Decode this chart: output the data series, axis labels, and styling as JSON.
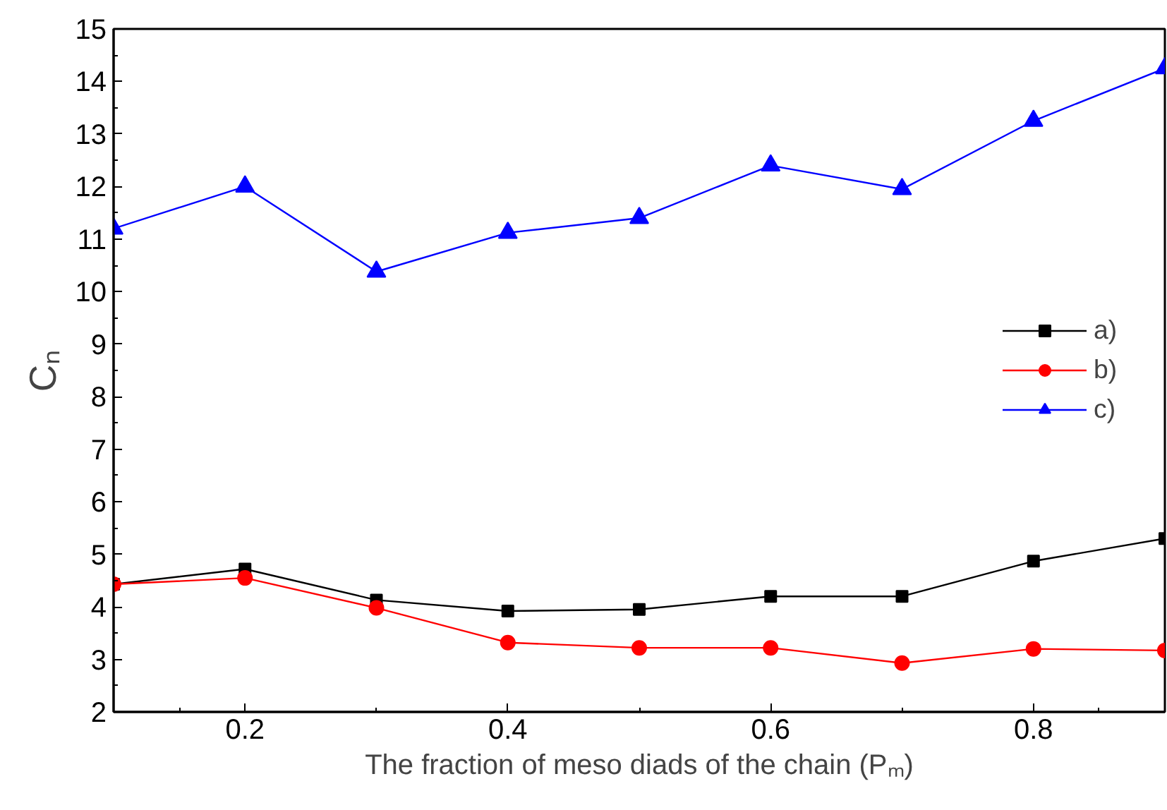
{
  "chart_data": {
    "type": "line",
    "xlabel": "The fraction of meso diads of the chain (Pₘ)",
    "ylabel": "Cₙ",
    "x": [
      0.1,
      0.2,
      0.3,
      0.4,
      0.5,
      0.6,
      0.7,
      0.8,
      0.9
    ],
    "series": [
      {
        "name": "a)",
        "color": "#000000",
        "marker": "square",
        "values": [
          4.43,
          4.72,
          4.13,
          3.92,
          3.95,
          4.2,
          4.2,
          4.87,
          5.3
        ]
      },
      {
        "name": "b)",
        "color": "#ff0000",
        "marker": "circle",
        "values": [
          4.43,
          4.55,
          3.98,
          3.32,
          3.22,
          3.22,
          2.93,
          3.2,
          3.17
        ]
      },
      {
        "name": "c)",
        "color": "#0000ff",
        "marker": "triangle",
        "values": [
          11.2,
          12.0,
          10.38,
          11.12,
          11.4,
          12.4,
          11.95,
          13.25,
          14.25
        ]
      }
    ],
    "xlim": [
      0.1,
      0.9
    ],
    "xticks": [
      0.2,
      0.4,
      0.6,
      0.8
    ],
    "ylim": [
      2,
      15
    ],
    "yticks": [
      2,
      3,
      4,
      5,
      6,
      7,
      8,
      9,
      10,
      11,
      12,
      13,
      14,
      15
    ],
    "grid": false,
    "legend": "right",
    "line_style": "solid"
  }
}
